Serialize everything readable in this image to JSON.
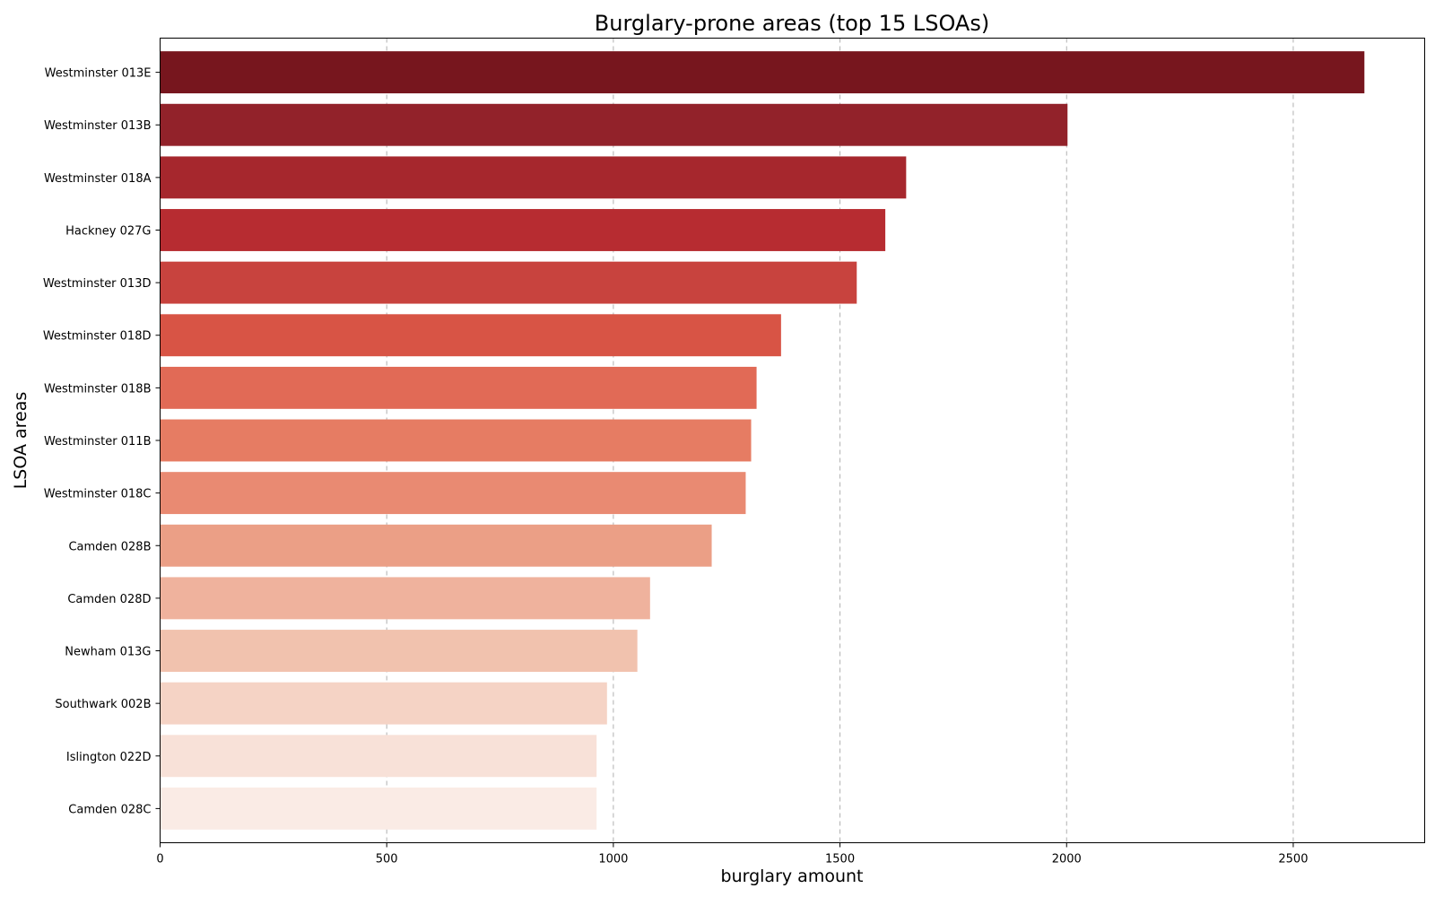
{
  "chart_data": {
    "type": "bar",
    "orientation": "horizontal",
    "title": "Burglary-prone areas (top 15 LSOAs)",
    "xlabel": "burglary amount",
    "ylabel": "LSOA areas",
    "xlim": [
      0,
      2790
    ],
    "xticks": [
      0,
      500,
      1000,
      1500,
      2000,
      2500
    ],
    "grid": "x-dashed",
    "categories": [
      "Westminster 013E",
      "Westminster 013B",
      "Westminster 018A",
      "Hackney 027G",
      "Westminster 013D",
      "Westminster 018D",
      "Westminster 018B",
      "Westminster 011B",
      "Westminster 018C",
      "Camden 028B",
      "Camden 028D",
      "Newham 013G",
      "Southwark 002B",
      "Islington 022D",
      "Camden 028C"
    ],
    "values": [
      2657,
      2002,
      1646,
      1600,
      1537,
      1370,
      1316,
      1304,
      1292,
      1217,
      1081,
      1053,
      986,
      963,
      963
    ],
    "colors": [
      "#77161e",
      "#92222a",
      "#a6272d",
      "#b72c31",
      "#c8433e",
      "#d85445",
      "#e16a56",
      "#e67c63",
      "#e98a72",
      "#eb9f86",
      "#efb29d",
      "#f1c2ae",
      "#f5d3c5",
      "#f8e1d8",
      "#faebe5"
    ]
  }
}
